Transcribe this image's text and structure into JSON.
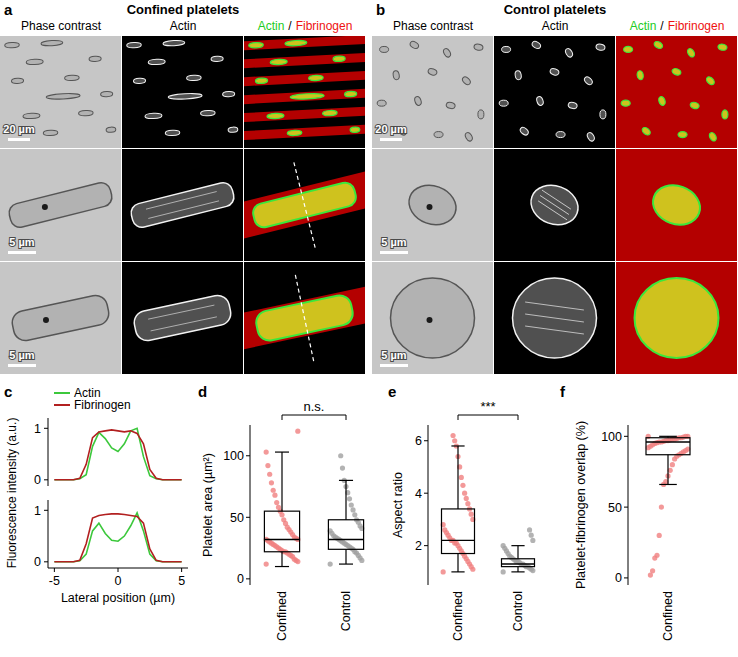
{
  "figure": {
    "panels": [
      {
        "letter": "a",
        "title": "Confined platelets",
        "columns": [
          "Phase contrast",
          "Actin"
        ],
        "merge_title": [
          {
            "text": "Actin",
            "color": "#22cc22"
          },
          {
            "text": "/",
            "color": "#000000"
          },
          {
            "text": "Fibrinogen",
            "color": "#ee1111"
          }
        ],
        "scale_bars": [
          "20 µm",
          "5 µm",
          "5 µm"
        ]
      },
      {
        "letter": "b",
        "title": "Control platelets",
        "columns": [
          "Phase contrast",
          "Actin"
        ],
        "merge_title": [
          {
            "text": "Actin",
            "color": "#22cc22"
          },
          {
            "text": "/",
            "color": "#000000"
          },
          {
            "text": "Fibrinogen",
            "color": "#ee1111"
          }
        ],
        "scale_bars": [
          "20 µm",
          "5 µm",
          "5 µm"
        ]
      }
    ]
  },
  "chart_data": [
    {
      "type": "line",
      "panel_label": "c",
      "x": [
        -5,
        -4.5,
        -4,
        -3.5,
        -3,
        -2.5,
        -2,
        -1.5,
        -1,
        -0.5,
        0,
        0.5,
        1,
        1.5,
        2,
        2.5,
        3,
        3.5,
        4,
        4.5,
        5
      ],
      "xlim": [
        -5.5,
        5.5
      ],
      "xticks": [
        -5,
        0,
        5
      ],
      "ylim": [
        -0.12,
        1.2
      ],
      "yticks": [
        0,
        1
      ],
      "x_label": "Lateral position (µm)",
      "y_label": "Fluorescence intensity (a.u.)",
      "legend": "top-left",
      "subplots": [
        {
          "series": [
            {
              "name": "Actin",
              "color": "#3cc83c",
              "values": [
                0,
                0,
                0,
                0,
                0.02,
                0.1,
                0.65,
                0.92,
                0.8,
                0.62,
                0.55,
                0.7,
                0.95,
                1.0,
                0.45,
                0.08,
                0.02,
                0,
                0,
                0,
                0
              ]
            },
            {
              "name": "Fibrinogen",
              "color": "#b22020",
              "values": [
                0,
                0,
                0,
                0,
                0.03,
                0.3,
                0.82,
                0.93,
                0.95,
                0.97,
                0.95,
                0.93,
                0.95,
                0.9,
                0.7,
                0.2,
                0.03,
                0,
                0,
                0,
                0
              ]
            }
          ]
        },
        {
          "series": [
            {
              "color": "#3cc83c",
              "values": [
                0,
                0,
                0,
                0,
                0.02,
                0.15,
                0.6,
                0.75,
                0.55,
                0.42,
                0.4,
                0.5,
                0.7,
                0.95,
                0.6,
                0.15,
                0.02,
                0,
                0,
                0,
                0
              ]
            },
            {
              "color": "#b22020",
              "values": [
                0,
                0,
                0,
                0,
                0.03,
                0.35,
                0.85,
                0.9,
                0.92,
                0.93,
                0.93,
                0.92,
                0.9,
                0.88,
                0.75,
                0.25,
                0.03,
                0,
                0,
                0,
                0
              ]
            }
          ]
        }
      ]
    },
    {
      "type": "box",
      "panel_label": "d",
      "categories": [
        "Confined",
        "Control"
      ],
      "y_label": "Platelet area (µm²)",
      "ylim": [
        -5,
        125
      ],
      "yticks": [
        0,
        50,
        100
      ],
      "annotation": "n.s.",
      "boxes": [
        {
          "color": "#f08080",
          "min": 10,
          "q1": 22,
          "median": 32,
          "q3": 55,
          "max": 103,
          "points": [
            12,
            14,
            15,
            16,
            18,
            19,
            20,
            21,
            22,
            22,
            23,
            24,
            25,
            26,
            27,
            28,
            29,
            30,
            31,
            32,
            32,
            33,
            34,
            36,
            38,
            40,
            42,
            45,
            48,
            52,
            55,
            58,
            62,
            68,
            72,
            78,
            85,
            92,
            103,
            120
          ]
        },
        {
          "color": "#a0a0a0",
          "min": 12,
          "q1": 24,
          "median": 32,
          "q3": 48,
          "max": 80,
          "points": [
            12,
            15,
            17,
            19,
            21,
            22,
            24,
            25,
            26,
            27,
            28,
            29,
            30,
            31,
            32,
            33,
            34,
            35,
            37,
            39,
            41,
            43,
            46,
            48,
            52,
            56,
            60,
            65,
            70,
            75,
            80,
            90,
            100
          ]
        }
      ]
    },
    {
      "type": "box",
      "panel_label": "e",
      "categories": [
        "Confined",
        "Control"
      ],
      "y_label": "Aspect ratio",
      "ylim": [
        0.5,
        6.6
      ],
      "yticks": [
        2,
        4,
        6
      ],
      "annotation": "***",
      "boxes": [
        {
          "color": "#f08080",
          "min": 1.0,
          "q1": 1.7,
          "median": 2.2,
          "q3": 3.4,
          "max": 5.8,
          "points": [
            1.0,
            1.1,
            1.2,
            1.3,
            1.4,
            1.5,
            1.6,
            1.7,
            1.8,
            1.9,
            2.0,
            2.1,
            2.1,
            2.2,
            2.2,
            2.3,
            2.4,
            2.5,
            2.6,
            2.8,
            3.0,
            3.2,
            3.4,
            3.6,
            3.8,
            4.0,
            4.3,
            4.6,
            5.0,
            5.4,
            5.8,
            6.0,
            6.2
          ]
        },
        {
          "color": "#a0a0a0",
          "min": 1.0,
          "q1": 1.2,
          "median": 1.3,
          "q3": 1.5,
          "max": 2.0,
          "points": [
            1.0,
            1.05,
            1.1,
            1.15,
            1.2,
            1.2,
            1.25,
            1.3,
            1.3,
            1.35,
            1.4,
            1.4,
            1.45,
            1.5,
            1.55,
            1.6,
            1.7,
            1.8,
            1.9,
            2.0,
            2.2,
            2.4,
            2.6
          ]
        }
      ]
    },
    {
      "type": "box",
      "panel_label": "f",
      "categories": [
        "Confined"
      ],
      "y_label": "Platelet-fibrinogen overlap (%)",
      "ylim": [
        -5,
        108
      ],
      "yticks": [
        0,
        50,
        100
      ],
      "boxes": [
        {
          "color": "#f08080",
          "min": 66,
          "q1": 87,
          "median": 96,
          "q3": 99,
          "max": 100,
          "points": [
            100,
            100,
            100,
            99.5,
            99,
            99,
            98.5,
            98,
            98,
            97.5,
            97,
            97,
            96.5,
            96,
            96,
            95.5,
            95,
            94,
            93,
            92,
            91,
            90,
            89,
            88,
            87,
            86,
            84,
            80,
            76,
            72,
            68,
            66,
            50,
            30,
            16,
            14,
            5,
            2
          ]
        }
      ]
    }
  ]
}
